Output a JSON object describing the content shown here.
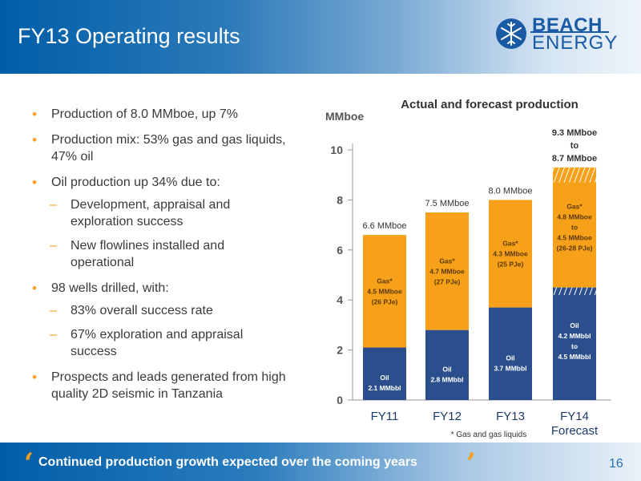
{
  "header": {
    "title": "FY13 Operating results"
  },
  "logo": {
    "word1": "BEACH",
    "word2": "ENERGY"
  },
  "bullets": [
    {
      "text": "Production of 8.0 MMboe, up 7%"
    },
    {
      "text": "Production mix: 53% gas and gas liquids, 47% oil"
    },
    {
      "text": "Oil production up 34% due to:",
      "sub": [
        "Development, appraisal and exploration success",
        "New flowlines installed and operational"
      ]
    },
    {
      "text": "98 wells drilled, with:",
      "sub": [
        "83% overall success rate",
        "67% exploration and appraisal success"
      ]
    },
    {
      "text": "Prospects and leads generated from high quality 2D seismic in Tanzania"
    }
  ],
  "chart_data": {
    "type": "bar",
    "title": "Actual and forecast production",
    "ylabel": "MMboe",
    "ylim": [
      0,
      10
    ],
    "yticks": [
      "0",
      "2",
      "4",
      "6",
      "8",
      "10"
    ],
    "categories": [
      "FY11",
      "FY12",
      "FY13",
      "FY14"
    ],
    "category_sublabels": [
      "",
      "",
      "",
      "Forecast"
    ],
    "series": [
      {
        "name": "Oil",
        "values": [
          2.1,
          2.8,
          3.7,
          4.5
        ],
        "color": "#2b4f8c"
      },
      {
        "name": "Gas*",
        "values": [
          4.5,
          4.7,
          4.3,
          4.8
        ],
        "color": "#f7a01a"
      }
    ],
    "totals": [
      "6.6 MMboe",
      "7.5 MMboe",
      "8.0 MMboe",
      "9.3 MMboe to 8.7 MMboe"
    ],
    "oil_labels": [
      [
        "Oil",
        "2.1 MMbbl"
      ],
      [
        "Oil",
        "2.8 MMbbl"
      ],
      [
        "Oil",
        "3.7 MMbbl"
      ],
      [
        "Oil",
        "4.2 MMbbl",
        "to",
        "4.5 MMbbl"
      ]
    ],
    "gas_labels": [
      [
        "Gas*",
        "4.5 MMboe",
        "(26 PJe)"
      ],
      [
        "Gas*",
        "4.7 MMboe",
        "(27 PJe)"
      ],
      [
        "Gas*",
        "4.3 MMboe",
        "(25 PJe)"
      ],
      [
        "Gas*",
        "4.8 MMboe",
        "to",
        "4.5 MMboe",
        "(26-28 PJe)"
      ]
    ],
    "forecast_range": {
      "oil": [
        4.2,
        4.5
      ],
      "top": [
        8.7,
        9.3
      ]
    },
    "footnote": "* Gas and gas liquids"
  },
  "footer": {
    "text": "Continued production growth expected over the coming years",
    "open_quote": "‘",
    "close_quote": "’"
  },
  "page_number": "16",
  "colors": {
    "accent": "#f6a01a",
    "brand_blue": "#005ea8",
    "oil": "#2b4f8c",
    "gas": "#f7a01a"
  }
}
